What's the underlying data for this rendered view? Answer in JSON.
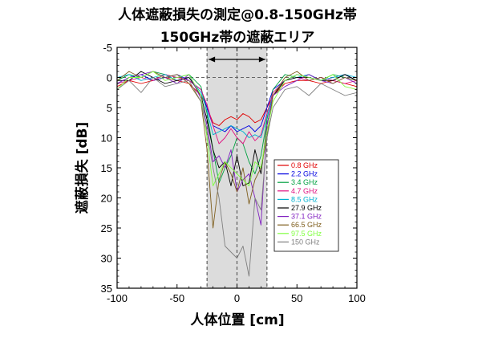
{
  "chart_data": {
    "type": "line",
    "title": "人体遮蔽損失の測定@0.8-150GHz帯",
    "subtitle": "150GHz帯の遮蔽エリア",
    "xlabel": "人体位置 [cm]",
    "ylabel": "遮蔽損失 [dB]",
    "xlim": [
      -100,
      100
    ],
    "ylim": [
      -5,
      35
    ],
    "y_inverted": true,
    "xticks": [
      -100,
      -50,
      0,
      50,
      100
    ],
    "yticks": [
      -5,
      0,
      5,
      10,
      15,
      20,
      25,
      30,
      35
    ],
    "grid": false,
    "legend_position": "lower-right",
    "shaded_region": [
      -25,
      25
    ],
    "reference_lines": {
      "vertical_x": 0,
      "horizontal_y": 0
    },
    "x": [
      -100,
      -90,
      -80,
      -70,
      -60,
      -50,
      -40,
      -30,
      -25,
      -20,
      -15,
      -10,
      -5,
      0,
      5,
      10,
      15,
      20,
      25,
      30,
      40,
      50,
      60,
      70,
      80,
      90,
      100
    ],
    "series": [
      {
        "name": "0.8 GHz",
        "color": "#e00000",
        "values": [
          1.5,
          0.5,
          1.0,
          0.5,
          0.0,
          0.5,
          1.0,
          3.0,
          5.0,
          7.5,
          8.0,
          7.0,
          6.5,
          7.0,
          6.0,
          6.5,
          7.5,
          7.0,
          5.0,
          3.0,
          1.0,
          0.5,
          0.5,
          1.0,
          0.5,
          1.0,
          1.5
        ]
      },
      {
        "name": "2.2 GHz",
        "color": "#0000e0",
        "values": [
          1.0,
          0.0,
          -0.5,
          0.5,
          0.0,
          -0.5,
          0.5,
          2.0,
          5.0,
          8.0,
          8.5,
          9.0,
          8.0,
          9.0,
          8.5,
          8.0,
          9.0,
          8.0,
          5.0,
          2.0,
          0.5,
          -0.5,
          0.0,
          0.5,
          0.0,
          -0.5,
          0.5
        ]
      },
      {
        "name": "3.4 GHz",
        "color": "#00a040",
        "values": [
          0.5,
          -0.5,
          0.0,
          -1.0,
          -0.5,
          0.0,
          -0.5,
          1.5,
          6.0,
          12.0,
          17.5,
          15.0,
          13.0,
          10.0,
          11.0,
          14.0,
          16.0,
          13.0,
          7.0,
          2.0,
          -0.5,
          0.0,
          -0.5,
          0.5,
          -0.5,
          0.0,
          0.5
        ]
      },
      {
        "name": "4.7 GHz",
        "color": "#e01080",
        "values": [
          1.0,
          0.5,
          0.0,
          0.5,
          -0.5,
          0.0,
          0.5,
          2.0,
          4.5,
          8.0,
          11.0,
          10.0,
          8.5,
          10.0,
          11.0,
          9.0,
          10.5,
          9.5,
          6.0,
          2.5,
          0.5,
          0.0,
          0.5,
          0.0,
          0.5,
          1.0,
          0.5
        ]
      },
      {
        "name": "8.5 GHz",
        "color": "#00b0d0",
        "values": [
          0.0,
          -0.5,
          0.5,
          0.0,
          -0.5,
          0.5,
          0.0,
          2.5,
          5.5,
          9.5,
          9.0,
          8.5,
          8.0,
          8.5,
          9.0,
          10.0,
          9.5,
          10.0,
          6.5,
          3.0,
          0.5,
          0.0,
          -0.5,
          0.5,
          0.0,
          -0.5,
          0.0
        ]
      },
      {
        "name": "27.9 GHz",
        "color": "#000000",
        "values": [
          0.5,
          0.5,
          -1.0,
          0.0,
          1.0,
          0.5,
          0.0,
          3.0,
          7.0,
          12.0,
          15.0,
          14.0,
          18.0,
          13.0,
          18.0,
          17.5,
          12.0,
          16.0,
          8.0,
          3.0,
          0.5,
          0.0,
          0.0,
          0.5,
          0.5,
          -0.5,
          0.5
        ]
      },
      {
        "name": "37.1 GHz",
        "color": "#8020c0",
        "values": [
          1.0,
          0.0,
          -0.5,
          -1.0,
          0.0,
          1.0,
          -0.5,
          3.5,
          8.0,
          14.0,
          13.0,
          15.0,
          12.0,
          19.0,
          17.0,
          16.0,
          20.0,
          24.5,
          8.0,
          3.0,
          1.5,
          0.5,
          -0.5,
          0.5,
          1.0,
          0.0,
          1.0
        ]
      },
      {
        "name": "66.5 GHz",
        "color": "#806020",
        "values": [
          0.5,
          -1.0,
          0.0,
          -1.0,
          0.0,
          -0.5,
          1.0,
          4.0,
          12.0,
          25.0,
          17.0,
          14.0,
          16.0,
          19.0,
          15.0,
          21.0,
          17.0,
          15.0,
          10.0,
          3.0,
          0.0,
          -1.0,
          0.5,
          0.0,
          1.0,
          0.0,
          0.5
        ]
      },
      {
        "name": "97.5 GHz",
        "color": "#80ff40",
        "values": [
          2.0,
          0.0,
          0.0,
          -1.0,
          0.5,
          0.0,
          -0.5,
          3.0,
          10.0,
          18.0,
          16.0,
          14.0,
          15.0,
          16.0,
          17.0,
          18.0,
          14.0,
          15.0,
          9.0,
          4.0,
          0.5,
          -0.5,
          0.0,
          0.5,
          -0.5,
          1.5,
          2.0
        ]
      },
      {
        "name": "150 GHz",
        "color": "#808080",
        "values": [
          2.0,
          0.5,
          2.5,
          0.0,
          1.5,
          1.0,
          0.5,
          4.0,
          9.0,
          15.0,
          20.0,
          28.0,
          29.0,
          30.0,
          28.0,
          33.0,
          20.0,
          22.0,
          10.0,
          5.0,
          2.0,
          1.5,
          3.0,
          1.0,
          2.0,
          3.0,
          2.5
        ]
      }
    ]
  }
}
